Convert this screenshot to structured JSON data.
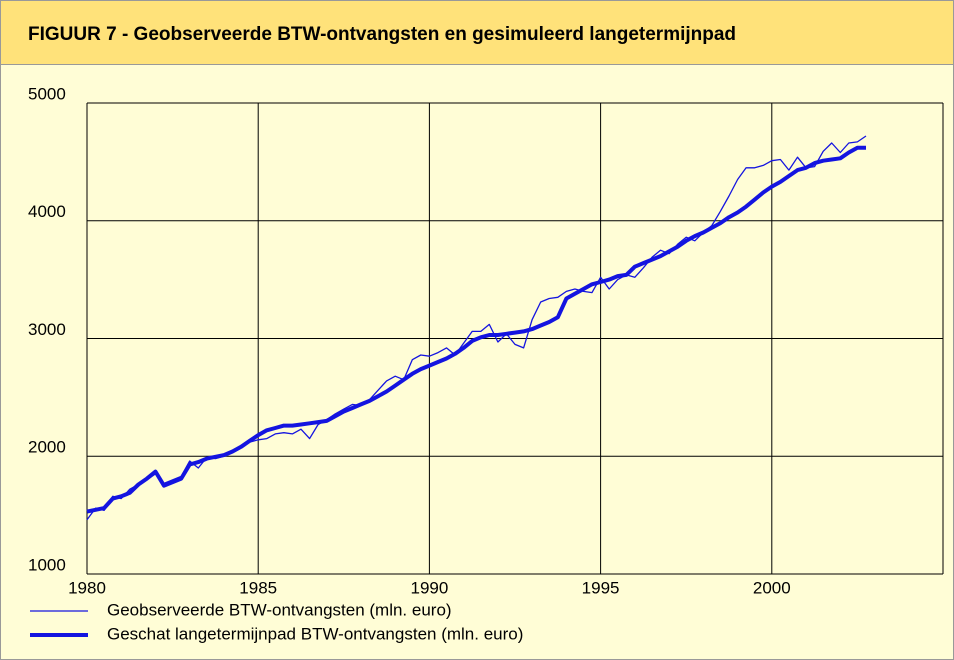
{
  "chart_data": {
    "type": "line",
    "title": "FIGUUR 7 -   Geobserveerde BTW-ontvangsten en gesimuleerd langetermijnpad",
    "x": [
      1980,
      1980.25,
      1980.5,
      1980.75,
      1981,
      1981.25,
      1981.5,
      1981.75,
      1982,
      1982.25,
      1982.5,
      1982.75,
      1983,
      1983.25,
      1983.5,
      1983.75,
      1984,
      1984.25,
      1984.5,
      1984.75,
      1985,
      1985.25,
      1985.5,
      1985.75,
      1986,
      1986.25,
      1986.5,
      1986.75,
      1987,
      1987.25,
      1987.5,
      1987.75,
      1988,
      1988.25,
      1988.5,
      1988.75,
      1989,
      1989.25,
      1989.5,
      1989.75,
      1990,
      1990.25,
      1990.5,
      1990.75,
      1991,
      1991.25,
      1991.5,
      1991.75,
      1992,
      1992.25,
      1992.5,
      1992.75,
      1993,
      1993.25,
      1993.5,
      1993.75,
      1994,
      1994.25,
      1994.5,
      1994.75,
      1995,
      1995.25,
      1995.5,
      1995.75,
      1996,
      1996.25,
      1996.5,
      1996.75,
      1997,
      1997.25,
      1997.5,
      1997.75,
      1998,
      1998.25,
      1998.5,
      1998.75,
      1999,
      1999.25,
      1999.5,
      1999.75,
      2000,
      2000.25,
      2000.5,
      2000.75,
      2001,
      2001.25,
      2001.5,
      2001.75,
      2002,
      2002.25,
      2002.5,
      2002.75
    ],
    "series": [
      {
        "name": "Geobserveerde BTW-ontvangsten (mln. euro)",
        "color": "#1414e0",
        "width": 1.3,
        "values": [
          1460,
          1560,
          1540,
          1660,
          1640,
          1720,
          1760,
          1800,
          1850,
          1770,
          1800,
          1830,
          1960,
          1900,
          1990,
          1980,
          2000,
          2030,
          2070,
          2120,
          2140,
          2150,
          2190,
          2200,
          2190,
          2230,
          2150,
          2270,
          2310,
          2360,
          2400,
          2440,
          2430,
          2480,
          2560,
          2640,
          2680,
          2650,
          2820,
          2860,
          2850,
          2880,
          2920,
          2860,
          2960,
          3060,
          3060,
          3120,
          2970,
          3040,
          2950,
          2920,
          3160,
          3310,
          3340,
          3350,
          3400,
          3420,
          3400,
          3390,
          3520,
          3420,
          3500,
          3540,
          3520,
          3600,
          3690,
          3750,
          3720,
          3800,
          3860,
          3830,
          3900,
          3960,
          4080,
          4210,
          4350,
          4450,
          4450,
          4470,
          4510,
          4520,
          4430,
          4540,
          4450,
          4460,
          4590,
          4660,
          4580,
          4660,
          4670,
          4720
        ]
      },
      {
        "name": "Geschat langetermijnpad BTW-ontvangsten (mln. euro)",
        "color": "#1414e0",
        "width": 4,
        "values": [
          1530,
          1545,
          1560,
          1640,
          1660,
          1690,
          1760,
          1810,
          1870,
          1750,
          1780,
          1810,
          1930,
          1950,
          1980,
          1995,
          2010,
          2040,
          2080,
          2130,
          2180,
          2220,
          2240,
          2260,
          2260,
          2270,
          2280,
          2290,
          2300,
          2340,
          2380,
          2410,
          2440,
          2470,
          2510,
          2550,
          2600,
          2650,
          2700,
          2740,
          2770,
          2800,
          2830,
          2870,
          2920,
          2980,
          3010,
          3030,
          3030,
          3040,
          3050,
          3060,
          3080,
          3110,
          3140,
          3180,
          3340,
          3380,
          3420,
          3460,
          3480,
          3500,
          3530,
          3540,
          3610,
          3640,
          3670,
          3700,
          3740,
          3780,
          3830,
          3870,
          3900,
          3940,
          3980,
          4030,
          4070,
          4120,
          4180,
          4240,
          4290,
          4330,
          4380,
          4430,
          4450,
          4490,
          4510,
          4520,
          4530,
          4580,
          4620,
          4620
        ]
      }
    ],
    "xlim": [
      1980,
      2005
    ],
    "xticks": [
      1980,
      1985,
      1990,
      1995,
      2000
    ],
    "ylim": [
      1000,
      5000
    ],
    "yticks": [
      1000,
      2000,
      3000,
      4000,
      5000
    ],
    "grid": true
  }
}
